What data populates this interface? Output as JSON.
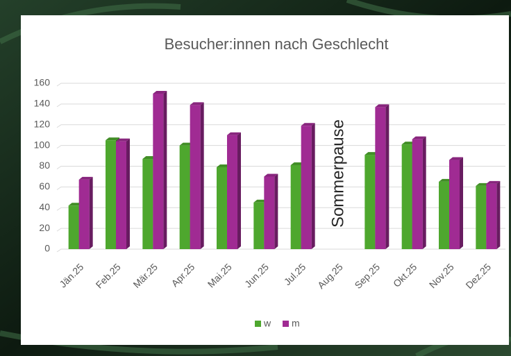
{
  "chart_data": {
    "type": "bar",
    "title": "Besucher:innen nach Geschlecht",
    "categories": [
      "Jän.25",
      "Feb.25",
      "Mär.25",
      "Apr.25",
      "Mai.25",
      "Jun.25",
      "Jul.25",
      "Aug.25",
      "Sep.25",
      "Okt.25",
      "Nov.25",
      "Dez.25"
    ],
    "series": [
      {
        "name": "w",
        "color": "#4ea72e",
        "values": [
          42,
          105,
          87,
          100,
          79,
          45,
          81,
          null,
          91,
          101,
          65,
          61
        ]
      },
      {
        "name": "m",
        "color": "#a02b93",
        "values": [
          67,
          104,
          150,
          139,
          110,
          70,
          119,
          null,
          137,
          106,
          86,
          63
        ]
      }
    ],
    "annotation": "Sommerpause",
    "ylim": [
      0,
      160
    ],
    "yticks": [
      0,
      20,
      40,
      60,
      80,
      100,
      120,
      140,
      160
    ],
    "grid": true,
    "legend": "bottom"
  }
}
